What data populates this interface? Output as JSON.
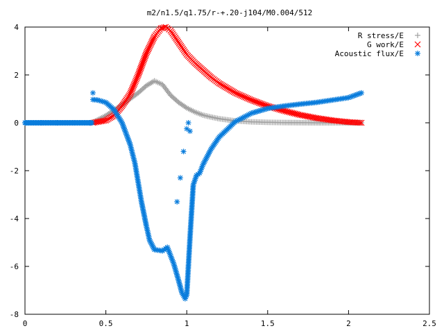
{
  "chart_data": {
    "type": "scatter",
    "title": "m2/n1.5/q1.75/r-+.20-j104/M0.004/512",
    "xlabel": "",
    "ylabel": "",
    "xlim": [
      0,
      2.5
    ],
    "ylim": [
      -8,
      4
    ],
    "x_ticks": [
      0,
      0.5,
      1,
      1.5,
      2,
      2.5
    ],
    "x_tick_labels": [
      "0",
      "0.5",
      "1",
      "1.5",
      "2",
      "2.5"
    ],
    "y_ticks": [
      -8,
      -6,
      -4,
      -2,
      0,
      2,
      4
    ],
    "y_tick_labels": [
      "-8",
      "-6",
      "-4",
      "-2",
      "0",
      "2",
      "4"
    ],
    "grid": false,
    "legend_position": "top-right",
    "series": [
      {
        "name": "R stress/E",
        "color": "#a0a0a0",
        "marker": "plus",
        "x": [
          0.42,
          0.5,
          0.6,
          0.7,
          0.75,
          0.8,
          0.85,
          0.9,
          0.95,
          1.0,
          1.05,
          1.1,
          1.15,
          1.2,
          1.3,
          1.4,
          1.5,
          1.6,
          1.8,
          2.0,
          2.08
        ],
        "y": [
          0.02,
          0.3,
          0.75,
          1.25,
          1.55,
          1.75,
          1.6,
          1.15,
          0.85,
          0.62,
          0.45,
          0.32,
          0.24,
          0.17,
          0.08,
          0.04,
          0.02,
          0.01,
          0.0,
          0.0,
          0.0
        ]
      },
      {
        "name": "G work/E",
        "color": "#ff0000",
        "marker": "cross",
        "x": [
          0.42,
          0.5,
          0.55,
          0.6,
          0.65,
          0.7,
          0.75,
          0.8,
          0.84,
          0.87,
          0.9,
          0.93,
          0.97,
          1.0,
          1.05,
          1.1,
          1.15,
          1.2,
          1.3,
          1.4,
          1.5,
          1.6,
          1.7,
          1.8,
          1.9,
          2.0,
          2.08
        ],
        "y": [
          0.0,
          0.1,
          0.3,
          0.7,
          1.2,
          2.0,
          2.9,
          3.6,
          3.95,
          4.0,
          3.85,
          3.55,
          3.15,
          2.85,
          2.5,
          2.2,
          1.9,
          1.65,
          1.25,
          0.95,
          0.7,
          0.5,
          0.33,
          0.2,
          0.1,
          0.03,
          0.0
        ]
      },
      {
        "name": "Acoustic flux/E",
        "color": "#0a7ddc",
        "marker": "star",
        "x": [
          0.42,
          0.45,
          0.5,
          0.55,
          0.6,
          0.65,
          0.68,
          0.7,
          0.72,
          0.75,
          0.77,
          0.8,
          0.85,
          0.88,
          0.92,
          0.95,
          0.97,
          0.99,
          1.0,
          1.02,
          1.04,
          1.06,
          1.08,
          1.1,
          1.15,
          1.2,
          1.3,
          1.4,
          1.5,
          1.6,
          1.7,
          1.8,
          1.9,
          2.0,
          2.08
        ],
        "y": [
          0.97,
          0.95,
          0.85,
          0.55,
          0.0,
          -0.9,
          -1.7,
          -2.5,
          -3.3,
          -4.3,
          -4.9,
          -5.3,
          -5.35,
          -5.2,
          -5.9,
          -6.6,
          -7.1,
          -7.35,
          -7.2,
          -4.8,
          -2.6,
          -2.2,
          -2.1,
          -1.75,
          -1.1,
          -0.6,
          0.05,
          0.4,
          0.6,
          0.7,
          0.78,
          0.85,
          0.95,
          1.05,
          1.25
        ]
      },
      {
        "name": "Acoustic flux/E",
        "color": "#0a7ddc",
        "marker": "star",
        "x": [
          0.0,
          0.1,
          0.2,
          0.3,
          0.4,
          0.42,
          0.94,
          0.96,
          0.98,
          1.0,
          1.01,
          1.02
        ],
        "y": [
          0.0,
          0.0,
          0.0,
          0.0,
          0.0,
          1.25,
          -3.3,
          -2.3,
          -1.2,
          -0.25,
          0.0,
          -0.35
        ]
      }
    ]
  }
}
